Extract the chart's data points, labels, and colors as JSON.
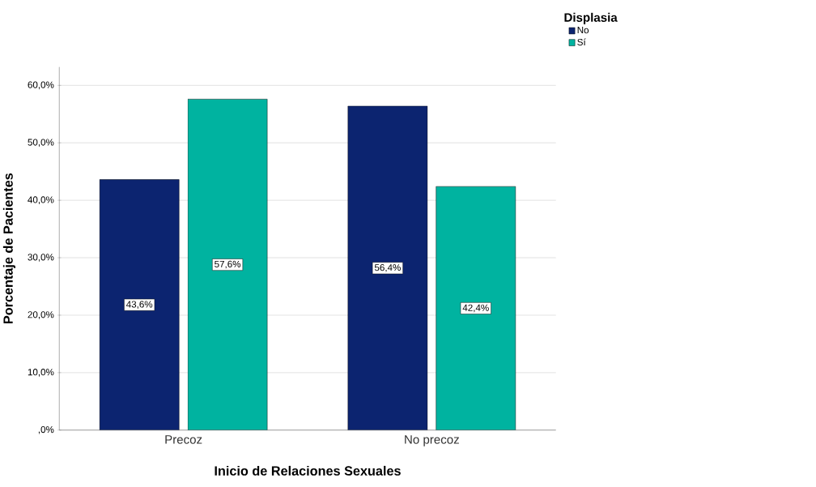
{
  "chart_data": {
    "type": "bar",
    "xlabel": "Inicio de Relaciones Sexuales",
    "ylabel": "Porcentaje de Pacientes",
    "legend_title": "Displasia",
    "categories": [
      "Precoz",
      "No precoz"
    ],
    "series": [
      {
        "name": "No",
        "color": "#0c2470",
        "values": [
          43.6,
          56.4
        ],
        "value_labels": [
          "43,6%",
          "56,4%"
        ]
      },
      {
        "name": "Sí",
        "color": "#00b3a0",
        "values": [
          57.6,
          42.4
        ],
        "value_labels": [
          "57,6%",
          "42,4%"
        ]
      }
    ],
    "ylim": [
      0,
      63.2
    ],
    "yticks": [
      {
        "value": 0,
        "label": ",0%"
      },
      {
        "value": 10,
        "label": "10,0%"
      },
      {
        "value": 20,
        "label": "20,0%"
      },
      {
        "value": 30,
        "label": "30,0%"
      },
      {
        "value": 40,
        "label": "40,0%"
      },
      {
        "value": 50,
        "label": "50,0%"
      },
      {
        "value": 60,
        "label": "60,0%"
      }
    ],
    "grid": "y",
    "legend": "top right"
  }
}
